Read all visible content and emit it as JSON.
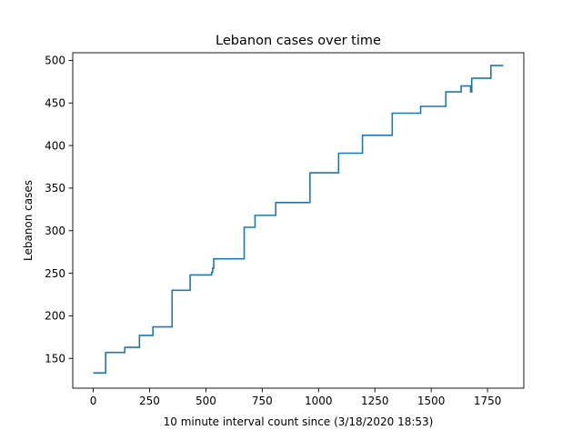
{
  "chart_data": {
    "type": "line",
    "title": "Lebanon cases over time",
    "xlabel": "10 minute interval count since (3/18/2020 18:53)",
    "ylabel": "Lebanon cases",
    "xlim": [
      -91,
      1911
    ],
    "ylim": [
      115,
      509
    ],
    "x_ticks": [
      0,
      250,
      500,
      750,
      1000,
      1250,
      1500,
      1750
    ],
    "y_ticks": [
      150,
      200,
      250,
      300,
      350,
      400,
      450,
      500
    ],
    "grid": false,
    "legend": "none",
    "colors": {
      "series": "#1f77b4",
      "axis": "#000000",
      "background": "#ffffff"
    },
    "series": [
      {
        "drawstyle": "steps-post",
        "x": [
          0,
          55,
          140,
          205,
          265,
          350,
          430,
          525,
          530,
          535,
          670,
          718,
          810,
          962,
          1089,
          1195,
          1327,
          1453,
          1565,
          1633,
          1675,
          1680,
          1765,
          1820
        ],
        "y": [
          133,
          157,
          163,
          177,
          187,
          230,
          248,
          251,
          256,
          267,
          304,
          318,
          333,
          368,
          391,
          412,
          438,
          446,
          463,
          470,
          463,
          479,
          494,
          494
        ]
      }
    ]
  }
}
